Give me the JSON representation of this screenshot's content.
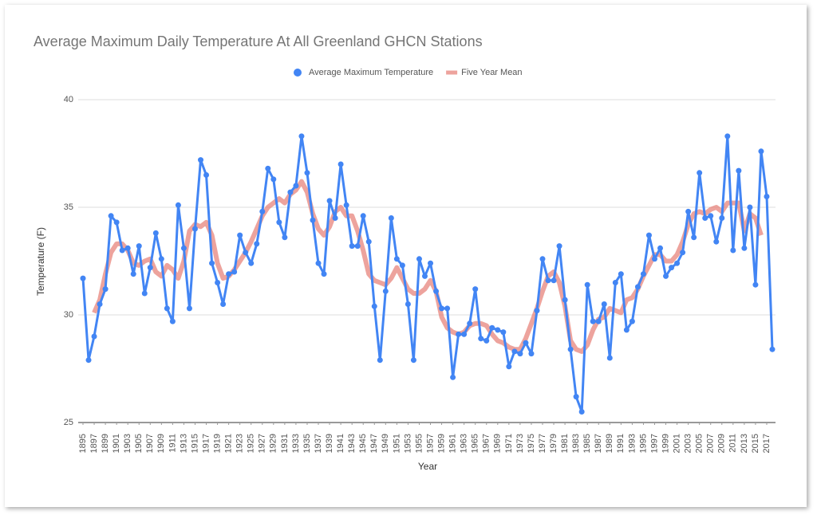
{
  "chart_data": {
    "type": "line",
    "title": "Average Maximum Daily Temperature At All Greenland GHCN Stations",
    "x_label": "Year",
    "y_label": "Temperature (F)",
    "x": [
      1895,
      1896,
      1897,
      1898,
      1899,
      1900,
      1901,
      1902,
      1903,
      1904,
      1905,
      1906,
      1907,
      1908,
      1909,
      1910,
      1911,
      1912,
      1913,
      1914,
      1915,
      1916,
      1917,
      1918,
      1919,
      1920,
      1921,
      1922,
      1923,
      1924,
      1925,
      1926,
      1927,
      1928,
      1929,
      1930,
      1931,
      1932,
      1933,
      1934,
      1935,
      1936,
      1937,
      1938,
      1939,
      1940,
      1941,
      1942,
      1943,
      1944,
      1945,
      1946,
      1947,
      1948,
      1949,
      1950,
      1951,
      1952,
      1953,
      1954,
      1955,
      1956,
      1957,
      1958,
      1959,
      1960,
      1961,
      1962,
      1963,
      1964,
      1965,
      1966,
      1967,
      1968,
      1969,
      1970,
      1971,
      1972,
      1973,
      1974,
      1975,
      1976,
      1977,
      1978,
      1979,
      1980,
      1981,
      1982,
      1983,
      1984,
      1985,
      1986,
      1987,
      1988,
      1989,
      1990,
      1991,
      1992,
      1993,
      1994,
      1995,
      1996,
      1997,
      1998,
      1999,
      2000,
      2001,
      2002,
      2003,
      2004,
      2005,
      2006,
      2007,
      2008,
      2009,
      2010,
      2011,
      2012,
      2013,
      2014,
      2015,
      2016,
      2017,
      2018
    ],
    "series": [
      {
        "name": "Average Maximum Temperature",
        "color": "#4285f4",
        "values": [
          31.7,
          27.9,
          29.0,
          30.5,
          31.2,
          34.6,
          34.3,
          33.0,
          33.1,
          31.9,
          33.2,
          31.0,
          32.2,
          33.8,
          32.6,
          30.3,
          29.7,
          35.1,
          33.1,
          30.3,
          34.0,
          37.2,
          36.5,
          32.4,
          31.5,
          30.5,
          31.9,
          32.0,
          33.7,
          32.9,
          32.4,
          33.3,
          34.8,
          36.8,
          36.3,
          34.3,
          33.6,
          35.7,
          36.0,
          38.3,
          36.6,
          34.4,
          32.4,
          31.9,
          35.3,
          34.5,
          37.0,
          35.1,
          33.2,
          33.2,
          34.6,
          33.4,
          30.4,
          27.9,
          31.1,
          34.5,
          32.6,
          32.3,
          30.5,
          27.9,
          32.6,
          31.8,
          32.4,
          31.1,
          30.3,
          30.3,
          27.1,
          29.1,
          29.1,
          29.6,
          31.2,
          28.9,
          28.8,
          29.4,
          29.3,
          29.2,
          27.6,
          28.3,
          28.2,
          28.7,
          28.2,
          30.2,
          32.6,
          31.6,
          31.6,
          33.2,
          30.7,
          28.4,
          26.2,
          25.5,
          31.4,
          29.7,
          29.7,
          30.5,
          28.0,
          31.5,
          31.9,
          29.3,
          29.7,
          31.3,
          31.9,
          33.7,
          32.6,
          33.1,
          31.8,
          32.2,
          32.4,
          32.9,
          34.8,
          33.6,
          36.6,
          34.5,
          34.6,
          33.4,
          34.5,
          38.3,
          33.0,
          36.7,
          33.1,
          35.0,
          31.4,
          37.6,
          35.5,
          28.4
        ]
      },
      {
        "name": "Five Year Mean",
        "color": "#e67c73",
        "values": [
          null,
          null,
          30.1,
          30.7,
          31.9,
          32.9,
          33.3,
          33.3,
          33.0,
          32.4,
          32.3,
          32.5,
          32.6,
          32.0,
          31.8,
          32.3,
          32.1,
          31.7,
          32.5,
          33.9,
          34.2,
          34.1,
          34.3,
          33.7,
          32.4,
          31.7,
          31.8,
          32.1,
          32.5,
          32.9,
          33.4,
          34.0,
          34.6,
          35.0,
          35.2,
          35.4,
          35.2,
          35.6,
          35.8,
          36.2,
          35.7,
          34.7,
          34.0,
          33.7,
          34.1,
          34.8,
          35.0,
          34.6,
          34.6,
          33.9,
          33.0,
          31.9,
          31.6,
          31.5,
          31.4,
          31.7,
          32.2,
          31.7,
          31.2,
          31.0,
          31.0,
          31.2,
          31.6,
          31.1,
          29.9,
          29.4,
          29.2,
          29.1,
          29.2,
          29.5,
          29.6,
          29.6,
          29.5,
          29.1,
          28.8,
          28.7,
          28.5,
          28.4,
          28.4,
          28.9,
          29.6,
          30.3,
          31.1,
          31.8,
          32.0,
          31.5,
          30.4,
          28.8,
          28.4,
          28.3,
          28.6,
          29.3,
          29.8,
          29.9,
          30.3,
          30.2,
          30.1,
          30.7,
          30.8,
          31.2,
          31.8,
          32.3,
          32.8,
          32.8,
          32.5,
          32.5,
          32.8,
          33.4,
          34.2,
          34.7,
          34.8,
          34.7,
          34.9,
          35.0,
          34.8,
          35.2,
          35.2,
          35.2,
          33.9,
          34.7,
          34.5,
          33.7,
          null,
          null
        ]
      }
    ],
    "xlim": [
      1895,
      2018
    ],
    "xticks": [
      1895,
      1897,
      1899,
      1901,
      1903,
      1905,
      1907,
      1909,
      1911,
      1913,
      1915,
      1917,
      1919,
      1921,
      1923,
      1925,
      1927,
      1929,
      1931,
      1933,
      1935,
      1937,
      1939,
      1941,
      1943,
      1945,
      1947,
      1949,
      1951,
      1953,
      1955,
      1957,
      1959,
      1961,
      1963,
      1965,
      1967,
      1969,
      1971,
      1973,
      1975,
      1977,
      1979,
      1981,
      1983,
      1985,
      1987,
      1989,
      1991,
      1993,
      1995,
      1997,
      1999,
      2001,
      2003,
      2005,
      2007,
      2009,
      2011,
      2013,
      2015,
      2017
    ],
    "ylim": [
      25,
      40
    ],
    "yticks": [
      25,
      30,
      35,
      40
    ],
    "grid": true,
    "legend": "top"
  }
}
